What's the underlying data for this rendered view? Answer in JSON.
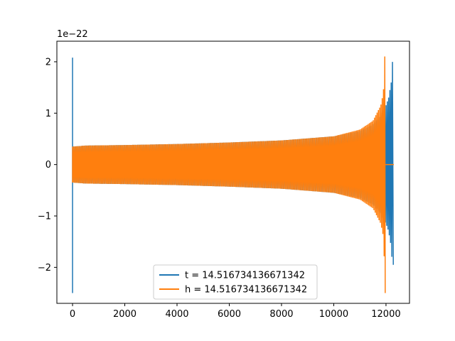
{
  "chart_data": {
    "type": "line",
    "title": "",
    "xlabel": "",
    "ylabel": "",
    "y_scale_offset_text": "1e−22",
    "xlim": [
      -600,
      12900
    ],
    "ylim": [
      -2.7,
      2.4
    ],
    "x_ticks": [
      0,
      2000,
      4000,
      6000,
      8000,
      10000,
      12000
    ],
    "y_ticks": [
      -2,
      -1,
      0,
      1,
      2
    ],
    "x_tick_labels": [
      "0",
      "2000",
      "4000",
      "6000",
      "8000",
      "10000",
      "12000"
    ],
    "y_tick_labels": [
      "−2",
      "−1",
      "0",
      "1",
      "2"
    ],
    "grid": false,
    "legend_position": "lower center",
    "legend": [
      {
        "label": "t = 14.516734136671342",
        "color": "#1f77b4"
      },
      {
        "label": "h = 14.516734136671342",
        "color": "#ff7f0e"
      }
    ],
    "series": [
      {
        "name": "t = 14.516734136671342",
        "color": "#1f77b4",
        "description_points": {
          "spike_x": 0,
          "spike_range": [
            -2.5,
            2.08
          ],
          "envelope_x": [
            0,
            500,
            2000,
            4000,
            6000,
            8000,
            10000,
            11000,
            11500,
            11800,
            12000,
            12100,
            12200,
            12270
          ],
          "envelope_amp": [
            0.35,
            0.37,
            0.38,
            0.4,
            0.43,
            0.47,
            0.55,
            0.65,
            0.78,
            0.95,
            1.15,
            1.3,
            1.6,
            2.18
          ],
          "end_x": 12280,
          "end_min": -1.95
        }
      },
      {
        "name": "h = 14.516734136671342",
        "color": "#ff7f0e",
        "description_points": {
          "spike_x": 0,
          "spike_range": [
            -0.35,
            0.35
          ],
          "envelope_x": [
            0,
            500,
            2000,
            4000,
            6000,
            8000,
            10000,
            11000,
            11500,
            11800,
            11900,
            11960
          ],
          "envelope_amp": [
            0.35,
            0.37,
            0.38,
            0.4,
            0.43,
            0.47,
            0.55,
            0.68,
            0.85,
            1.15,
            1.4,
            2.18
          ],
          "end_x": 11970,
          "end_min": -2.5,
          "flat_after": [
            11980,
            12300
          ]
        }
      }
    ]
  }
}
